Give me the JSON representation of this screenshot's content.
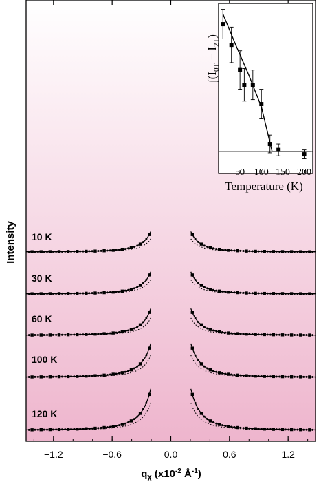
{
  "chart_data": [
    {
      "type": "line",
      "xlabel": "q",
      "xlabel_sub": "χ",
      "xlabel_units_pre": " (x10",
      "xlabel_units_exp": "-2",
      "xlabel_units_mid": " Å",
      "xlabel_units_exp2": "-1",
      "xlabel_units_post": ")",
      "ylabel": "Intensity",
      "xlim": [
        -1.48,
        1.48
      ],
      "xticks": [
        {
          "value": -1.2,
          "label": "−1.2"
        },
        {
          "value": -0.6,
          "label": "−0.6"
        },
        {
          "value": 0.0,
          "label": "0.0"
        },
        {
          "value": 0.6,
          "label": "0.6"
        },
        {
          "value": 1.2,
          "label": "1.2"
        }
      ],
      "background_gradient": [
        "#ffffff",
        "#eeb5cd"
      ],
      "series": [
        {
          "name": "10 K",
          "label": "10 K",
          "offset": 4,
          "width": 0.075
        },
        {
          "name": "30 K",
          "label": "30 K",
          "offset": 3,
          "width": 0.078
        },
        {
          "name": "60 K",
          "label": "60 K",
          "offset": 2,
          "width": 0.085
        },
        {
          "name": "100 K",
          "label": "100 K",
          "offset": 1,
          "width": 0.095
        },
        {
          "name": "120 K",
          "label": "120 K",
          "offset": 0,
          "width": 0.105
        }
      ],
      "model": "Lorentzian peak centred at q = 0 with measured points (markers, solid line) and reference curve (dotted)"
    },
    {
      "type": "scatter",
      "xlabel": "Temperature (K)",
      "ylabel_parts": [
        "∫(I",
        "0T",
        " − I",
        "2T",
        ")"
      ],
      "xlim": [
        0,
        220
      ],
      "ylim": [
        -0.15,
        1.0
      ],
      "xticks": [
        50,
        100,
        150,
        200
      ],
      "baseline": 0,
      "points": [
        {
          "x": 10,
          "y": 0.86,
          "err": 0.1
        },
        {
          "x": 30,
          "y": 0.72,
          "err": 0.12
        },
        {
          "x": 50,
          "y": 0.55,
          "err": 0.13
        },
        {
          "x": 60,
          "y": 0.45,
          "err": 0.11
        },
        {
          "x": 80,
          "y": 0.45,
          "err": 0.1
        },
        {
          "x": 100,
          "y": 0.32,
          "err": 0.1
        },
        {
          "x": 120,
          "y": 0.05,
          "err": 0.06
        },
        {
          "x": 140,
          "y": 0.01,
          "err": 0.04
        },
        {
          "x": 200,
          "y": -0.02,
          "err": 0.03
        }
      ],
      "fit_curve": [
        [
          10,
          0.93
        ],
        [
          40,
          0.72
        ],
        [
          70,
          0.52
        ],
        [
          100,
          0.3
        ],
        [
          115,
          0.12
        ],
        [
          125,
          0.0
        ],
        [
          215,
          0.0
        ]
      ]
    }
  ]
}
